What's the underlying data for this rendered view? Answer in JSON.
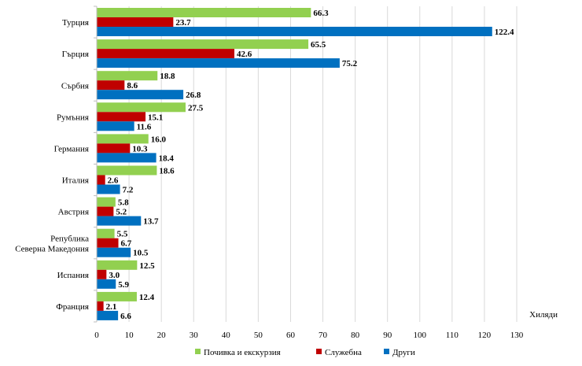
{
  "chart_data": {
    "type": "bar",
    "orientation": "horizontal",
    "title": "",
    "xlabel": "",
    "ylabel": "",
    "unit_label": "Хиляди",
    "xlim": [
      0,
      130
    ],
    "x_ticks": [
      0,
      10,
      20,
      30,
      40,
      50,
      60,
      70,
      80,
      90,
      100,
      110,
      120,
      130
    ],
    "grid": true,
    "legend_position": "bottom",
    "categories": [
      [
        "Турция"
      ],
      [
        "Гърция"
      ],
      [
        "Сърбия"
      ],
      [
        "Румъния"
      ],
      [
        "Германия"
      ],
      [
        "Италия"
      ],
      [
        "Австрия"
      ],
      [
        "Република",
        "Северна Македония"
      ],
      [
        "Испания"
      ],
      [
        "Франция"
      ]
    ],
    "series": [
      {
        "name": "Почивка и екскурзия",
        "color": "#92d050",
        "values": [
          66.3,
          65.5,
          18.8,
          27.5,
          16.0,
          18.6,
          5.8,
          5.5,
          12.5,
          12.4
        ],
        "labels": [
          "66.3",
          "65.5",
          "18.8",
          "27.5",
          "16.0",
          "18.6",
          "5.8",
          "5.5",
          "12.5",
          "12.4"
        ]
      },
      {
        "name": "Служебна",
        "color": "#c00000",
        "values": [
          23.7,
          42.6,
          8.6,
          15.1,
          10.3,
          2.6,
          5.2,
          6.7,
          3.0,
          2.1
        ],
        "labels": [
          "23.7",
          "42.6",
          "8.6",
          "15.1",
          "10.3",
          "2.6",
          "5.2",
          "6.7",
          "3.0",
          "2.1"
        ]
      },
      {
        "name": "Други",
        "color": "#0070c0",
        "values": [
          122.4,
          75.2,
          26.8,
          11.6,
          18.4,
          7.2,
          13.7,
          10.5,
          5.9,
          6.6
        ],
        "labels": [
          "122.4",
          "75.2",
          "26.8",
          "11.6",
          "18.4",
          "7.2",
          "13.7",
          "10.5",
          "5.9",
          "6.6"
        ]
      }
    ]
  }
}
